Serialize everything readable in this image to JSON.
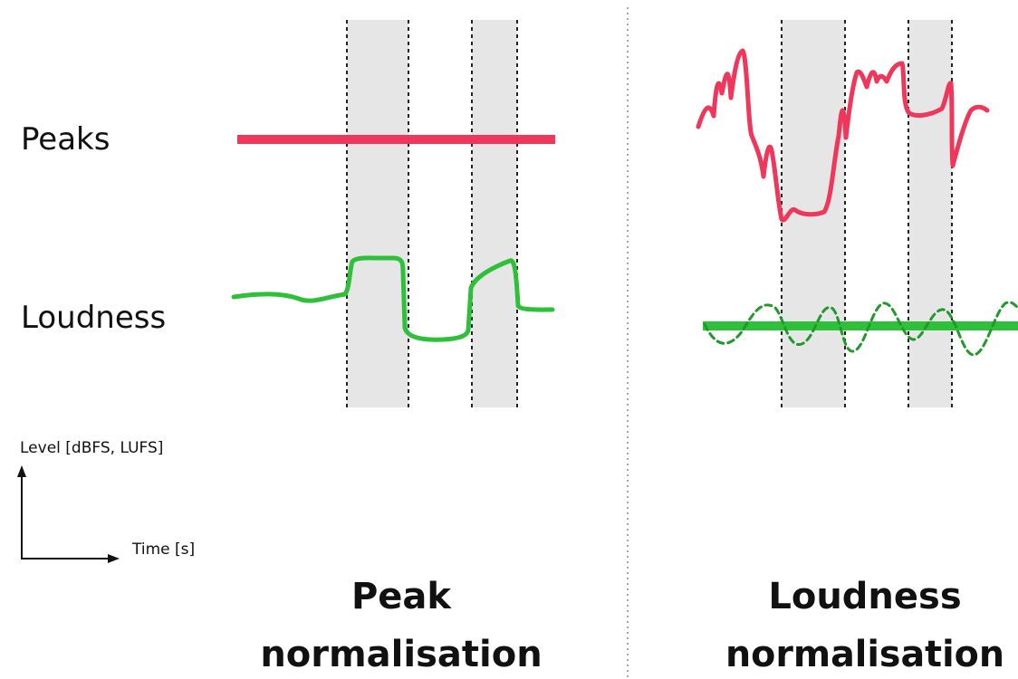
{
  "labels": {
    "peaks": "Peaks",
    "loudness": "Loudness"
  },
  "axes": {
    "y_label": "Level [dBFS, LUFS]",
    "x_label": "Time [s]"
  },
  "panels": {
    "left": {
      "title_line1": "Peak",
      "title_line2": "normalisation"
    },
    "right": {
      "title_line1": "Loudness",
      "title_line2": "normalisation"
    }
  },
  "colors": {
    "peaks": "#f0365a",
    "loudness": "#2fc03a",
    "band": "#e6e6e6",
    "dashed": "#222222",
    "divider": "#888888",
    "text": "#111111"
  }
}
